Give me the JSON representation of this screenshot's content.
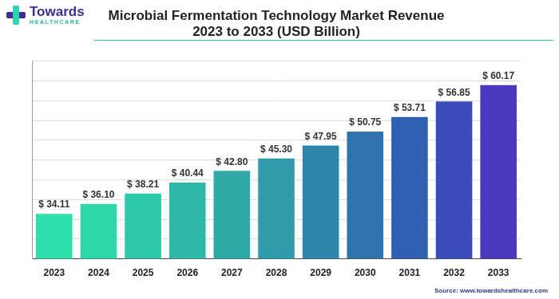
{
  "chart_data": {
    "type": "bar",
    "title": [
      "Microbial Fermentation Technology Market Revenue",
      "2023 to 2033 (USD Billion)"
    ],
    "brand": [
      "Towards",
      "HEALTHCARE"
    ],
    "source": "Source: www.towardshealthcare.com",
    "categories": [
      "2023",
      "2024",
      "2025",
      "2026",
      "2027",
      "2028",
      "2029",
      "2030",
      "2031",
      "2032",
      "2033"
    ],
    "values": [
      34.11,
      36.1,
      38.21,
      40.44,
      42.8,
      45.3,
      47.95,
      50.75,
      53.71,
      56.85,
      60.17
    ],
    "value_labels": [
      "$ 34.11",
      "$ 36.10",
      "$ 38.21",
      "$ 40.44",
      "$ 42.80",
      "$ 45.30",
      "$ 47.95",
      "$ 50.75",
      "$ 53.71",
      "$ 56.85",
      "$ 60.17"
    ],
    "colors": [
      "#2ddfa8",
      "#2fd6a9",
      "#2dc8a9",
      "#2db9a8",
      "#2eaaa7",
      "#2f9aa8",
      "#2e87aa",
      "#2f74ad",
      "#3060b2",
      "#3a4cb9",
      "#4a38bd"
    ],
    "ylim": [
      25,
      65
    ],
    "yticks": [
      25,
      29,
      33,
      37,
      41,
      45,
      49,
      53,
      57,
      61,
      65
    ],
    "grid": true,
    "data_labels": true,
    "tick_labels": "x"
  }
}
